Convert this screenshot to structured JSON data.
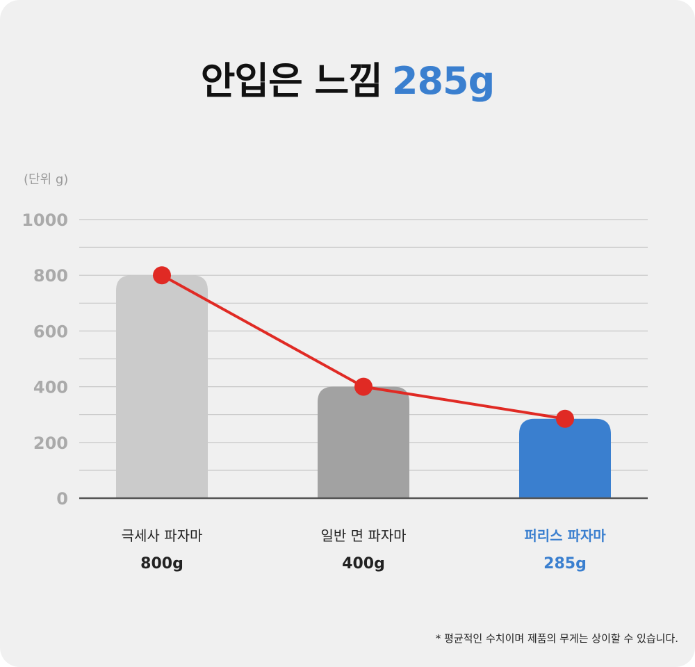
{
  "header": {
    "title_main": "안입은 느낌",
    "title_accent": "285g"
  },
  "colors": {
    "accent": "#3a7fcf",
    "line": "#e02a24",
    "gridline": "#c6c6c6",
    "axis": "#555555",
    "tick_label": "#aaaaaa",
    "bars": [
      "#cbcbcb",
      "#a2a2a2",
      "#3a7fcf"
    ],
    "category_label": [
      "#222222",
      "#222222",
      "#3a7fcf"
    ]
  },
  "chart_data": {
    "type": "bar",
    "ylabel": "(단위 g)",
    "ylim": [
      0,
      1000
    ],
    "yticks": [
      0,
      200,
      400,
      600,
      800,
      1000
    ],
    "ytick_labels": [
      "0",
      "200",
      "400",
      "600",
      "800",
      "1000"
    ],
    "minor_step": 100,
    "grid": true,
    "categories": [
      "극세사 파자마",
      "일반 면 파자마",
      "퍼리스 파자마"
    ],
    "values": [
      800,
      400,
      285
    ],
    "value_labels": [
      "800g",
      "400g",
      "285g"
    ],
    "overlay_line": true
  },
  "footnote": "*  평균적인 수치이며 제품의 무게는 상이할 수 있습니다."
}
